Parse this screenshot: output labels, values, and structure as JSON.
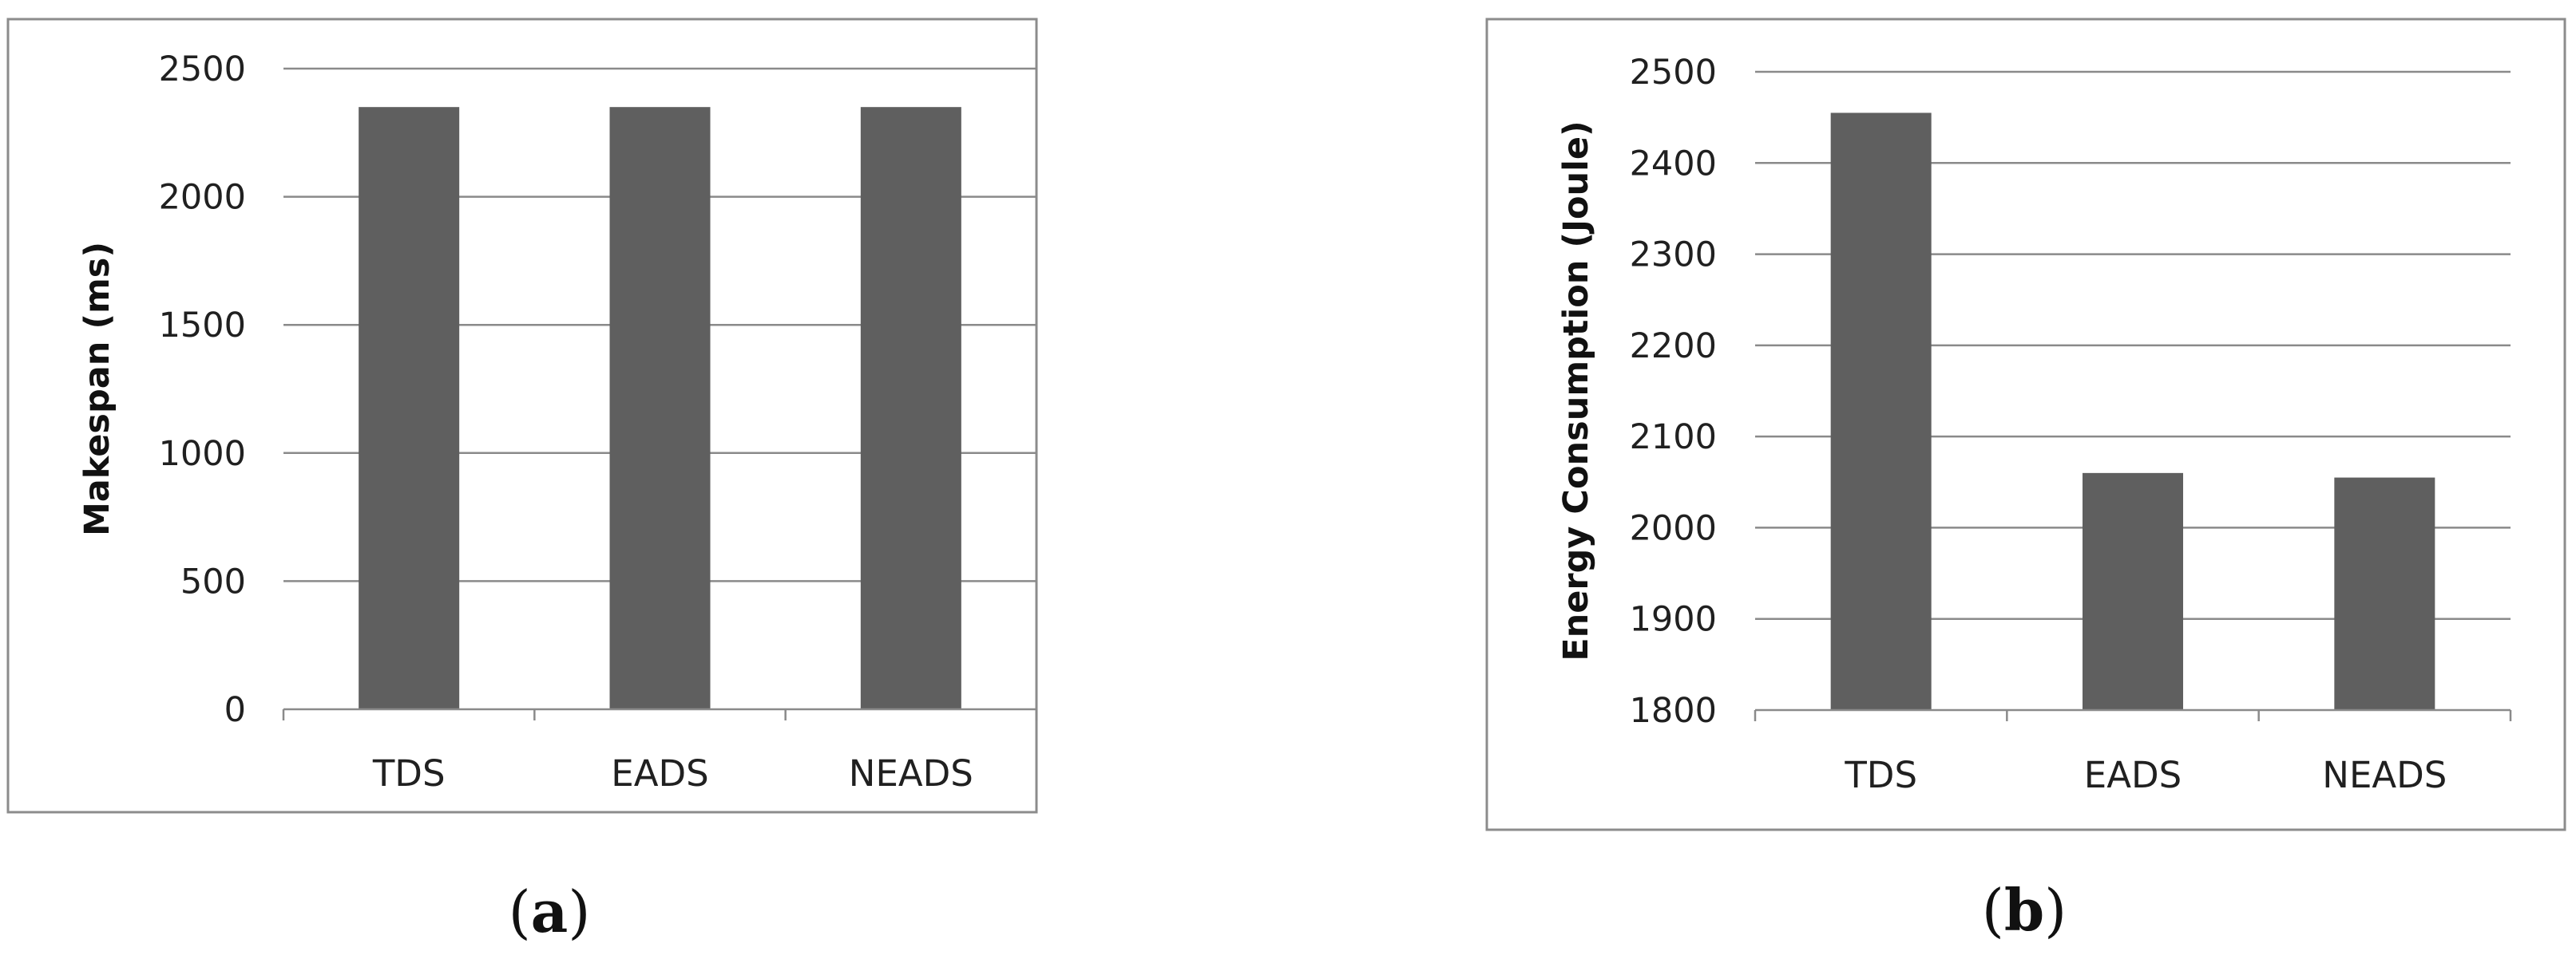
{
  "chart_data": [
    {
      "type": "bar",
      "panel_label": {
        "open": "(",
        "letter": "a",
        "close": ")"
      },
      "categories": [
        "TDS",
        "EADS",
        "NEADS"
      ],
      "values": [
        2350,
        2350,
        2350
      ],
      "ylabel": "Makespan (ms)",
      "xlabel": "",
      "ylim": [
        0,
        2500
      ],
      "yticks": [
        0,
        500,
        1000,
        1500,
        2000,
        2500
      ],
      "grid": true,
      "legend": "none",
      "bar_color": "#5f5f5f"
    },
    {
      "type": "bar",
      "panel_label": {
        "open": "(",
        "letter": "b",
        "close": ")"
      },
      "categories": [
        "TDS",
        "EADS",
        "NEADS"
      ],
      "values": [
        2455,
        2060,
        2055
      ],
      "ylabel": "Energy Consumption (Joule)",
      "xlabel": "",
      "ylim": [
        1800,
        2500
      ],
      "yticks": [
        1800,
        1900,
        2000,
        2100,
        2200,
        2300,
        2400,
        2500
      ],
      "grid": true,
      "legend": "none",
      "bar_color": "#5f5f5f"
    }
  ]
}
